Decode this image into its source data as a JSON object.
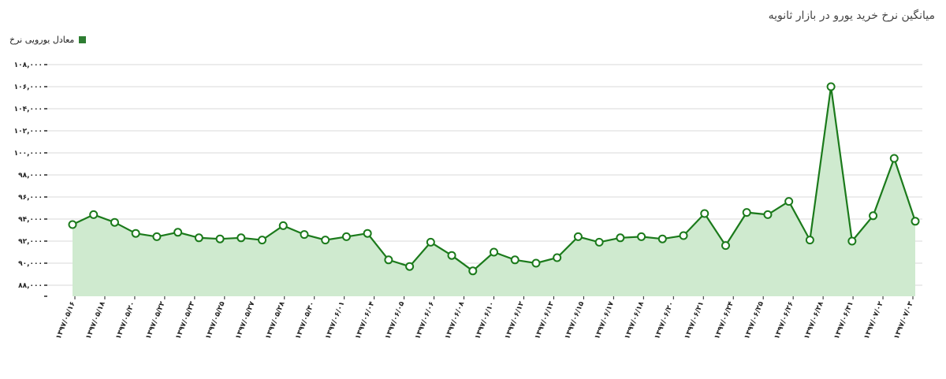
{
  "title": "میانگین نرخ خرید یورو در بازار ثانویه",
  "legend_label": "معادل یورویی نرخ",
  "colors": {
    "line": "#1b7a1b",
    "fill": "#cfeacf",
    "marker_fill": "#ffffff",
    "grid": "#d9d9d9",
    "legend": "#2e7d32"
  },
  "chart_data": {
    "type": "area",
    "title": "میانگین نرخ خرید یورو در بازار ثانویه",
    "xlabel": "",
    "ylabel": "",
    "ylim": [
      87000,
      109000
    ],
    "yticks": [
      88000,
      90000,
      92000,
      94000,
      96000,
      98000,
      100000,
      102000,
      104000,
      106000,
      108000
    ],
    "ytick_labels": [
      "۸۸,۰۰۰",
      "۹۰,۰۰۰",
      "۹۲,۰۰۰",
      "۹۴,۰۰۰",
      "۹۶,۰۰۰",
      "۹۸,۰۰۰",
      "۱۰۰,۰۰۰",
      "۱۰۲,۰۰۰",
      "۱۰۴,۰۰۰",
      "۱۰۶,۰۰۰",
      "۱۰۸,۰۰۰"
    ],
    "x_labels": [
      "۱۳۹۷/۰۵/۱۶",
      "۱۳۹۷/۰۵/۱۸",
      "۱۳۹۷/۰۵/۲۰",
      "۱۳۹۷/۰۵/۲۲",
      "۱۳۹۷/۰۵/۲۳",
      "۱۳۹۷/۰۵/۲۵",
      "۱۳۹۷/۰۵/۲۷",
      "۱۳۹۷/۰۵/۲۸",
      "۱۳۹۷/۰۵/۳۰",
      "۱۳۹۷/۰۶/۰۱",
      "۱۳۹۷/۰۶/۰۴",
      "۱۳۹۷/۰۶/۰۵",
      "۱۳۹۷/۰۶/۰۶",
      "۱۳۹۷/۰۶/۰۸",
      "۱۳۹۷/۰۶/۱۰",
      "۱۳۹۷/۰۶/۱۲",
      "۱۳۹۷/۰۶/۱۳",
      "۱۳۹۷/۰۶/۱۵",
      "۱۳۹۷/۰۶/۱۷",
      "۱۳۹۷/۰۶/۱۸",
      "۱۳۹۷/۰۶/۲۰",
      "۱۳۹۷/۰۶/۲۱",
      "۱۳۹۷/۰۶/۲۴",
      "۱۳۹۷/۰۶/۲۵",
      "۱۳۹۷/۰۶/۲۶",
      "۱۳۹۷/۰۶/۲۸",
      "۱۳۹۷/۰۶/۳۱",
      "۱۳۹۷/۰۷/۰۲",
      "۱۳۹۷/۰۷/۰۳"
    ],
    "series": [
      {
        "name": "معادل یورویی نرخ",
        "values": [
          93500,
          94400,
          93700,
          92700,
          92400,
          92800,
          92300,
          92200,
          92300,
          92100,
          93400,
          92600,
          92100,
          92400,
          92700,
          90300,
          89700,
          91900,
          90700,
          89300,
          91000,
          90300,
          90000,
          90500,
          92400,
          91900,
          92300,
          92400,
          92200,
          92500,
          94500,
          91600,
          94600,
          94400,
          95600,
          92100,
          106000,
          92000,
          94300,
          99500,
          93800
        ],
        "points_note": ""
      }
    ],
    "grid": true,
    "legend": "top-left"
  }
}
